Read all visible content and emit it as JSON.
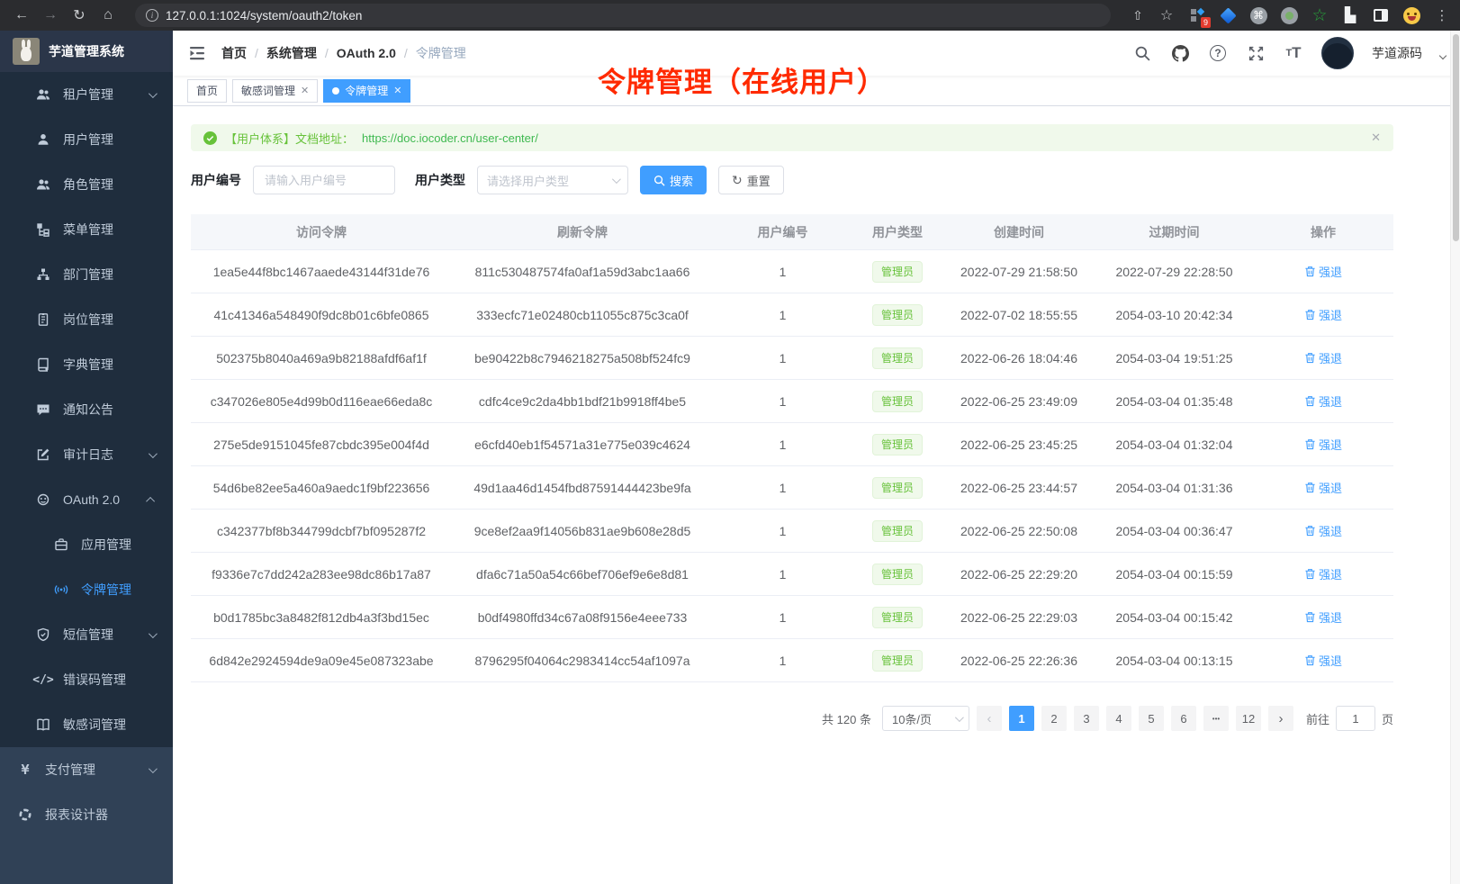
{
  "browser": {
    "url": "127.0.0.1:1024/system/oauth2/token",
    "extension_badge": "9",
    "icons": [
      "back-icon",
      "forward-icon",
      "reload-icon",
      "home-icon",
      "info-icon",
      "share-icon",
      "star-icon",
      "extensions",
      "more-menu-icon"
    ]
  },
  "sidebar": {
    "title": "芋道管理系统",
    "items": [
      {
        "label": "租户管理",
        "icon": "tenant-users-icon",
        "arrow": "down"
      },
      {
        "label": "用户管理",
        "icon": "user-icon"
      },
      {
        "label": "角色管理",
        "icon": "roles-icon"
      },
      {
        "label": "菜单管理",
        "icon": "menu-tree-icon"
      },
      {
        "label": "部门管理",
        "icon": "department-icon"
      },
      {
        "label": "岗位管理",
        "icon": "post-icon"
      },
      {
        "label": "字典管理",
        "icon": "dictionary-icon"
      },
      {
        "label": "通知公告",
        "icon": "announcement-icon"
      },
      {
        "label": "审计日志",
        "icon": "audit-log-icon",
        "arrow": "down"
      },
      {
        "label": "OAuth 2.0",
        "icon": "oauth-icon",
        "arrow": "up"
      },
      {
        "label": "应用管理",
        "icon": "application-icon"
      },
      {
        "label": "令牌管理",
        "icon": "token-signal-icon",
        "active": true
      },
      {
        "label": "短信管理",
        "icon": "sms-shield-icon",
        "arrow": "down"
      },
      {
        "label": "错误码管理",
        "icon": "error-code-icon"
      },
      {
        "label": "敏感词管理",
        "icon": "sensitive-word-icon"
      },
      {
        "label": "支付管理",
        "icon": "payment-icon",
        "arrow": "down"
      },
      {
        "label": "报表设计器",
        "icon": "report-designer-icon"
      }
    ]
  },
  "header": {
    "breadcrumb": [
      "首页",
      "系统管理",
      "OAuth 2.0",
      "令牌管理"
    ],
    "tools": [
      "search-icon",
      "github-icon",
      "help-icon",
      "fullscreen-icon",
      "font-size-icon"
    ],
    "username": "芋道源码"
  },
  "tabs": [
    {
      "label": "首页",
      "closable": false,
      "active": false
    },
    {
      "label": "敏感词管理",
      "closable": true,
      "active": false
    },
    {
      "label": "令牌管理",
      "closable": true,
      "active": true
    }
  ],
  "annotation": {
    "text": "令牌管理（在线用户）",
    "color": "#ff2a00"
  },
  "alert": {
    "label": "【用户体系】文档地址：",
    "link": "https://doc.iocoder.cn/user-center/"
  },
  "filters": {
    "user_id_label": "用户编号",
    "user_id_placeholder": "请输入用户编号",
    "user_type_label": "用户类型",
    "user_type_placeholder": "请选择用户类型",
    "search_label": "搜索",
    "reset_label": "重置"
  },
  "table": {
    "headers": [
      "访问令牌",
      "刷新令牌",
      "用户编号",
      "用户类型",
      "创建时间",
      "过期时间",
      "操作"
    ],
    "action_label": "强退",
    "rows": [
      {
        "access": "1ea5e44f8bc1467aaede43144f31de76",
        "refresh": "811c530487574fa0af1a59d3abc1aa66",
        "user_id": "1",
        "user_type": "管理员",
        "created": "2022-07-29 21:58:50",
        "expires": "2022-07-29 22:28:50"
      },
      {
        "access": "41c41346a548490f9dc8b01c6bfe0865",
        "refresh": "333ecfc71e02480cb11055c875c3ca0f",
        "user_id": "1",
        "user_type": "管理员",
        "created": "2022-07-02 18:55:55",
        "expires": "2054-03-10 20:42:34"
      },
      {
        "access": "502375b8040a469a9b82188afdf6af1f",
        "refresh": "be90422b8c7946218275a508bf524fc9",
        "user_id": "1",
        "user_type": "管理员",
        "created": "2022-06-26 18:04:46",
        "expires": "2054-03-04 19:51:25"
      },
      {
        "access": "c347026e805e4d99b0d116eae66eda8c",
        "refresh": "cdfc4ce9c2da4bb1bdf21b9918ff4be5",
        "user_id": "1",
        "user_type": "管理员",
        "created": "2022-06-25 23:49:09",
        "expires": "2054-03-04 01:35:48"
      },
      {
        "access": "275e5de9151045fe87cbdc395e004f4d",
        "refresh": "e6cfd40eb1f54571a31e775e039c4624",
        "user_id": "1",
        "user_type": "管理员",
        "created": "2022-06-25 23:45:25",
        "expires": "2054-03-04 01:32:04"
      },
      {
        "access": "54d6be82ee5a460a9aedc1f9bf223656",
        "refresh": "49d1aa46d1454fbd87591444423be9fa",
        "user_id": "1",
        "user_type": "管理员",
        "created": "2022-06-25 23:44:57",
        "expires": "2054-03-04 01:31:36"
      },
      {
        "access": "c342377bf8b344799dcbf7bf095287f2",
        "refresh": "9ce8ef2aa9f14056b831ae9b608e28d5",
        "user_id": "1",
        "user_type": "管理员",
        "created": "2022-06-25 22:50:08",
        "expires": "2054-03-04 00:36:47"
      },
      {
        "access": "f9336e7c7dd242a283ee98dc86b17a87",
        "refresh": "dfa6c71a50a54c66bef706ef9e6e8d81",
        "user_id": "1",
        "user_type": "管理员",
        "created": "2022-06-25 22:29:20",
        "expires": "2054-03-04 00:15:59"
      },
      {
        "access": "b0d1785bc3a8482f812db4a3f3bd15ec",
        "refresh": "b0df4980ffd34c67a08f9156e4eee733",
        "user_id": "1",
        "user_type": "管理员",
        "created": "2022-06-25 22:29:03",
        "expires": "2054-03-04 00:15:42"
      },
      {
        "access": "6d842e2924594de9a09e45e087323abe",
        "refresh": "8796295f04064c2983414cc54af1097a",
        "user_id": "1",
        "user_type": "管理员",
        "created": "2022-06-25 22:26:36",
        "expires": "2054-03-04 00:13:15"
      }
    ]
  },
  "pagination": {
    "total": "共 120 条",
    "page_size": "10条/页",
    "pages": [
      "1",
      "2",
      "3",
      "4",
      "5",
      "6",
      "...",
      "12"
    ],
    "active_page": "1",
    "prev": "‹",
    "next": "›",
    "jump_label": "前往",
    "jump_value": "1",
    "jump_suffix": "页"
  },
  "colors": {
    "accent": "#409eff",
    "success": "#67c23a",
    "sidebar_bg": "#304156",
    "submenu_bg": "#1f2d3d",
    "annotation_red": "#ff2a00"
  }
}
